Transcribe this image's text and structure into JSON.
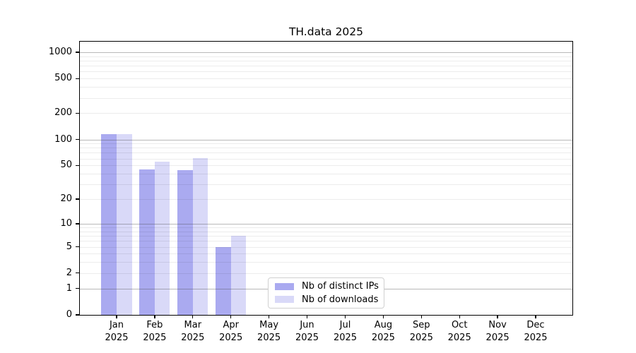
{
  "chart_data": {
    "type": "bar",
    "title": "TH.data 2025",
    "categories": [
      "Jan",
      "Feb",
      "Mar",
      "Apr",
      "May",
      "Jun",
      "Jul",
      "Aug",
      "Sep",
      "Oct",
      "Nov",
      "Dec"
    ],
    "year_label": "2025",
    "series": [
      {
        "name": "Nb of distinct IPs",
        "color": "#aaaaf0",
        "values": [
          115,
          45,
          44,
          5,
          0,
          0,
          0,
          0,
          0,
          0,
          0,
          0
        ]
      },
      {
        "name": "Nb of downloads",
        "color": "#d9d9f8",
        "values": [
          116,
          55,
          61,
          7,
          0,
          0,
          0,
          0,
          0,
          0,
          0,
          0
        ]
      }
    ],
    "xlabel": "",
    "ylabel": "",
    "yscale": "log1p",
    "ylim": [
      0,
      1320
    ],
    "y_ticks": [
      0,
      1,
      2,
      5,
      10,
      20,
      50,
      100,
      200,
      500,
      1000
    ],
    "grid_major": [
      1,
      10,
      100,
      1000
    ],
    "grid_minor": [
      2,
      3,
      4,
      5,
      6,
      7,
      8,
      9,
      20,
      30,
      40,
      50,
      60,
      70,
      80,
      90,
      200,
      300,
      400,
      500,
      600,
      700,
      800,
      900
    ],
    "grid": "on",
    "legend_position": "bottom-center-inside"
  },
  "colors": {
    "spine": "#000000",
    "major_grid": "#b0b0b0",
    "minor_grid": "#ebebeb",
    "legend_border": "#d0d0d0",
    "background": "#ffffff"
  }
}
